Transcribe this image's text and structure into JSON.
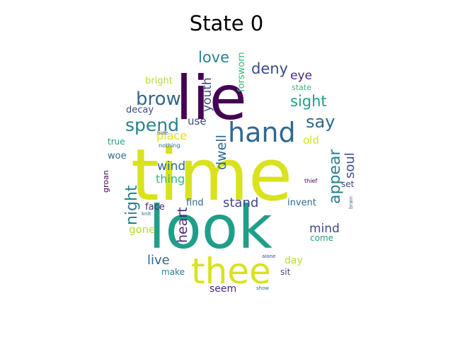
{
  "figure": {
    "title": "State 0"
  },
  "palette": {
    "dark_purple": "#440154",
    "indigo": "#482878",
    "blue": "#3e4a89",
    "steel": "#31688e",
    "teal": "#26828e",
    "green_teal": "#1f9e89",
    "green": "#35b779",
    "light_green": "#6ece58",
    "lime": "#b5de2b",
    "yellow": "#d9e21c"
  },
  "words": [
    {
      "text": "time"
    },
    {
      "text": "look"
    },
    {
      "text": "lie"
    },
    {
      "text": "thee"
    },
    {
      "text": "hand"
    },
    {
      "text": "brow"
    },
    {
      "text": "spend"
    },
    {
      "text": "say"
    },
    {
      "text": "love"
    },
    {
      "text": "deny"
    },
    {
      "text": "eye"
    },
    {
      "text": "sight"
    },
    {
      "text": "youth"
    },
    {
      "text": "forsworn"
    },
    {
      "text": "bright"
    },
    {
      "text": "state"
    },
    {
      "text": "decay"
    },
    {
      "text": "use"
    },
    {
      "text": "place"
    },
    {
      "text": "old"
    },
    {
      "text": "true"
    },
    {
      "text": "hide"
    },
    {
      "text": "nothing"
    },
    {
      "text": "dwell"
    },
    {
      "text": "appear"
    },
    {
      "text": "soul"
    },
    {
      "text": "woe"
    },
    {
      "text": "wind"
    },
    {
      "text": "thing"
    },
    {
      "text": "night"
    },
    {
      "text": "groan"
    },
    {
      "text": "stand"
    },
    {
      "text": "heart"
    },
    {
      "text": "thief"
    },
    {
      "text": "set"
    },
    {
      "text": "face"
    },
    {
      "text": "knit"
    },
    {
      "text": "find"
    },
    {
      "text": "invent"
    },
    {
      "text": "brain"
    },
    {
      "text": "mind"
    },
    {
      "text": "gone"
    },
    {
      "text": "come"
    },
    {
      "text": "live"
    },
    {
      "text": "alone"
    },
    {
      "text": "day"
    },
    {
      "text": "make"
    },
    {
      "text": "sit"
    },
    {
      "text": "seem"
    },
    {
      "text": "show"
    }
  ]
}
